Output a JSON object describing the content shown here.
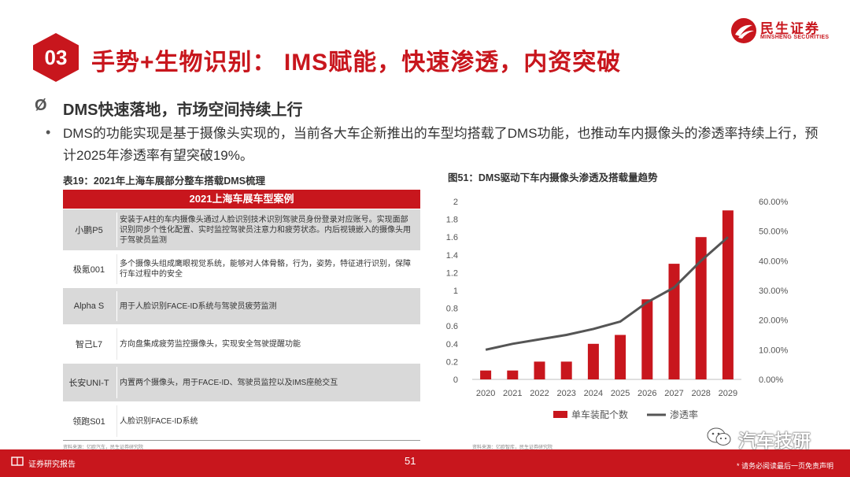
{
  "header": {
    "section_number": "03",
    "title": "手势+生物识别： IMS赋能，快速渗透，内资突破",
    "logo_cn": "民生证券",
    "logo_en": "MINSHENG SECURITIES"
  },
  "bullets": {
    "main_symbol": "Ø",
    "main": "DMS快速落地，市场空间持续上行",
    "sub_symbol": "•",
    "sub": "DMS的功能实现是基于摄像头实现的，当前各大车企新推出的车型均搭载了DMS功能，也推动车内摄像头的渗透率持续上行，预计2025年渗透率有望突破19%。"
  },
  "table": {
    "caption": "表19：2021年上海车展部分整车搭载DMS梳理",
    "header": "2021上海车展车型案例",
    "rows": [
      {
        "model": "小鹏P5",
        "desc": "安装于A柱的车内摄像头通过人脸识别技术识别驾驶员身份登录对应账号。实现面部识别同步个性化配置、实时监控驾驶员注意力和疲劳状态。内后视镜嵌入的摄像头用于驾驶员监测"
      },
      {
        "model": "极氪001",
        "desc": "多个摄像头组成鹰眼视觉系统，能够对人体骨骼，行为，姿势，特征进行识别，保障行车过程中的安全"
      },
      {
        "model": "Alpha S",
        "desc": "用于人脸识别FACE-ID系统与驾驶员疲劳监测"
      },
      {
        "model": "智己L7",
        "desc": "方向盘集成疲劳监控摄像头，实现安全驾驶提醒功能"
      },
      {
        "model": "长安UNI-T",
        "desc": "内置两个摄像头，用于FACE-ID、驾驶员监控以及IMS座舱交互"
      },
      {
        "model": "领跑S01",
        "desc": "人脸识别FACE-ID系统"
      }
    ],
    "source": "资料来源：亿欧汽车，民生证券研究院"
  },
  "chart_data": {
    "type": "bar",
    "title": "图51：DMS驱动下车内摄像头渗透及搭载量趋势",
    "categories": [
      "2020",
      "2021",
      "2022",
      "2023",
      "2024",
      "2025",
      "2026",
      "2027",
      "2028",
      "2029"
    ],
    "series": [
      {
        "name": "单车装配个数",
        "type": "bar",
        "axis": "left",
        "color": "#c8161d",
        "values": [
          0.1,
          0.1,
          0.2,
          0.2,
          0.4,
          0.5,
          0.9,
          1.3,
          1.6,
          1.9
        ]
      },
      {
        "name": "渗透率",
        "type": "line",
        "axis": "right",
        "color": "#555555",
        "values": [
          0.1,
          0.12,
          0.135,
          0.15,
          0.17,
          0.195,
          0.26,
          0.31,
          0.4,
          0.48
        ]
      }
    ],
    "y_left": {
      "min": 0,
      "max": 2,
      "ticks": [
        "0",
        "0.2",
        "0.4",
        "0.6",
        "0.8",
        "1",
        "1.2",
        "1.4",
        "1.6",
        "1.8",
        "2"
      ]
    },
    "y_right": {
      "min": 0,
      "max": 0.6,
      "ticks": [
        "0.00%",
        "10.00%",
        "20.00%",
        "30.00%",
        "40.00%",
        "50.00%",
        "60.00%"
      ]
    },
    "legend_position": "bottom",
    "grid": false,
    "source": "资料来源：亿欧智库，民生证券研究院"
  },
  "footer": {
    "left": "证券研究报告",
    "page": "51",
    "right": "* 请务必阅读最后一页免责声明",
    "watermark": "汽车技研"
  }
}
